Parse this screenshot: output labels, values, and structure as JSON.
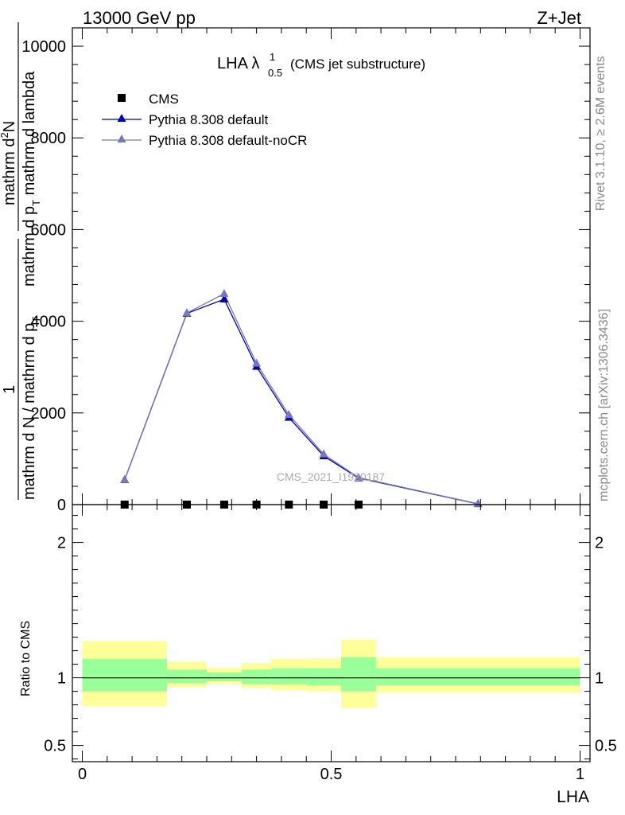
{
  "header": {
    "left": "13000 GeV pp",
    "right": "Z+Jet"
  },
  "side_text": {
    "rivet": "Rivet 3.1.10, ≥ 2.6M events",
    "mcplots": "mcplots.cern.ch [arXiv:1306.3436]"
  },
  "watermark": "CMS_2021_I1920187",
  "colors": {
    "cms": "#000000",
    "pythia_default": "#0000cc",
    "pythia_nocr": "#7777bb",
    "band_outer": "#ffff99",
    "band_inner": "#99ff99"
  },
  "chart_data": [
    {
      "type": "line",
      "title": "LHA λ",
      "title_sup": "1",
      "title_sub": "0.5",
      "title_suffix": "(CMS jet substructure)",
      "ylabel_top": "mathrm d",
      "ylabel_top_sup": "2",
      "ylabel_top_tail": "N",
      "ylabel_bottom": "mathrm d p",
      "ylabel_bottom_sub": "T",
      "ylabel_bottom_tail": " mathrm d lambda",
      "ylabel_left_frac_top": "1",
      "ylabel_left_frac_bottom": "mathrm d N / mathrm d p",
      "ylabel_left_frac_bottom_sub": "T",
      "ylim": [
        0,
        10400
      ],
      "xlim": [
        -0.02,
        1.02
      ],
      "yticks": [
        0,
        2000,
        4000,
        6000,
        8000,
        10000
      ],
      "ytick_labels": [
        "0",
        "2000",
        "4000",
        "6000",
        "8000",
        "10000"
      ],
      "legend": [
        {
          "name": "CMS",
          "marker": "square"
        },
        {
          "name": "Pythia 8.308 default",
          "marker": "triangle"
        },
        {
          "name": "Pythia 8.308 default-noCR",
          "marker": "triangle"
        }
      ],
      "series": [
        {
          "name": "CMS",
          "x": [
            0.085,
            0.21,
            0.285,
            0.35,
            0.415,
            0.485,
            0.555
          ],
          "values": [
            0,
            0,
            0,
            0,
            0,
            0,
            0
          ]
        },
        {
          "name": "Pythia 8.308 default",
          "x": [
            0.085,
            0.21,
            0.285,
            0.35,
            0.415,
            0.485,
            0.555,
            0.795
          ],
          "values": [
            540,
            4170,
            4480,
            3010,
            1900,
            1060,
            580,
            15
          ]
        },
        {
          "name": "Pythia 8.308 default-noCR",
          "x": [
            0.085,
            0.21,
            0.285,
            0.35,
            0.415,
            0.485,
            0.555,
            0.795
          ],
          "values": [
            545,
            4180,
            4600,
            3080,
            1960,
            1100,
            590,
            20
          ]
        }
      ]
    },
    {
      "type": "area",
      "ylabel": "Ratio to CMS",
      "xlabel": "LHA",
      "ylim": [
        0.38,
        2.28
      ],
      "xlim": [
        -0.02,
        1.02
      ],
      "yticks": [
        0.5,
        1,
        2
      ],
      "ytick_labels": [
        "0.5",
        "1",
        "2"
      ],
      "xticks": [
        0,
        0.5,
        1
      ],
      "xtick_labels": [
        "0",
        "0.5",
        "1"
      ],
      "bins": [
        {
          "lo": 0.0,
          "hi": 0.17,
          "outer": [
            0.79,
            1.27
          ],
          "inner": [
            0.9,
            1.14
          ]
        },
        {
          "lo": 0.17,
          "hi": 0.25,
          "outer": [
            0.93,
            1.12
          ],
          "inner": [
            0.96,
            1.06
          ]
        },
        {
          "lo": 0.25,
          "hi": 0.32,
          "outer": [
            0.955,
            1.075
          ],
          "inner": [
            0.975,
            1.04
          ]
        },
        {
          "lo": 0.32,
          "hi": 0.38,
          "outer": [
            0.925,
            1.11
          ],
          "inner": [
            0.955,
            1.06
          ]
        },
        {
          "lo": 0.38,
          "hi": 0.45,
          "outer": [
            0.91,
            1.14
          ],
          "inner": [
            0.95,
            1.07
          ]
        },
        {
          "lo": 0.45,
          "hi": 0.52,
          "outer": [
            0.9,
            1.145
          ],
          "inner": [
            0.945,
            1.07
          ]
        },
        {
          "lo": 0.52,
          "hi": 0.59,
          "outer": [
            0.78,
            1.28
          ],
          "inner": [
            0.9,
            1.15
          ]
        },
        {
          "lo": 0.59,
          "hi": 1.0,
          "outer": [
            0.89,
            1.15
          ],
          "inner": [
            0.945,
            1.07
          ]
        }
      ],
      "reference": 1
    }
  ]
}
